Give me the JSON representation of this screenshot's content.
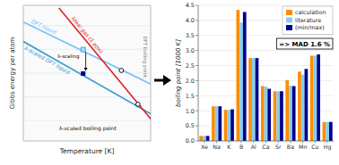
{
  "chart_data": [
    {
      "type": "diagram",
      "xlabel": "Temperature [K]",
      "ylabel": "Gibbs energy per atom",
      "tick_labels": false,
      "annotations": [
        {
          "text": "DFT liquid",
          "color": "#70BFFF"
        },
        {
          "text": "λ-scaled DFT liquid",
          "color": "#3399CC"
        },
        {
          "text": "Ideal gas (1 atm)",
          "color": "#DD2222"
        },
        {
          "text": "DFT boiling point"
        },
        {
          "text": "λ-scaled boiling point"
        },
        {
          "text": "λ-scaling"
        }
      ]
    },
    {
      "type": "bar",
      "ylabel": "boiling point [1000 K]",
      "categories": [
        "Xe",
        "Na",
        "K",
        "B",
        "Al",
        "Ca",
        "Sr",
        "Ba",
        "Mn",
        "Cu",
        "Hg"
      ],
      "series": [
        {
          "name": "calculation",
          "color": "#FF8C00",
          "values": [
            0.165,
            1.15,
            1.03,
            4.35,
            2.75,
            1.82,
            1.65,
            2.02,
            2.3,
            2.83,
            0.63
          ]
        },
        {
          "name": "literature",
          "color": "#87CEEB",
          "values": [
            0.165,
            1.15,
            1.03,
            3.93,
            2.75,
            1.8,
            1.65,
            1.83,
            2.2,
            2.83,
            0.63
          ]
        },
        {
          "name": "(min/max)",
          "color": "#00008B",
          "values": [
            0.165,
            1.15,
            1.05,
            4.28,
            2.75,
            1.73,
            1.65,
            1.82,
            2.39,
            2.87,
            0.63
          ]
        }
      ],
      "ylim": [
        0.0,
        4.5
      ],
      "yticks": [
        {
          "value": 0.0,
          "label": "0.0"
        },
        0.5,
        {
          "value": 1.0,
          "label": "1.0"
        },
        1.5,
        {
          "value": 2.0,
          "label": "2.0"
        },
        2.5,
        {
          "value": 3.0,
          "label": "3.0"
        },
        3.5,
        {
          "value": 4.0,
          "label": "4.0"
        },
        4.5
      ],
      "grid": true,
      "legend": "upper right",
      "annotations": [
        "=> MAD 1.6 %"
      ]
    }
  ]
}
